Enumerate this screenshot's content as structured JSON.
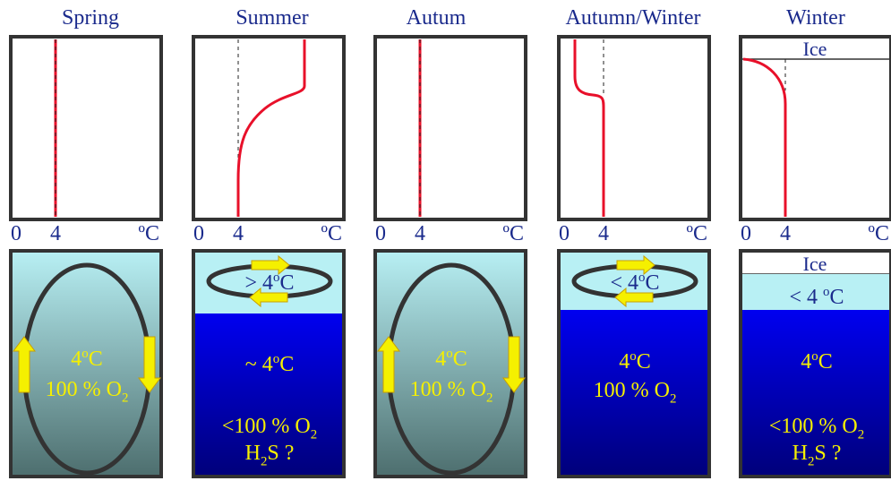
{
  "colors": {
    "frame": "#333333",
    "profile": "#e8102a",
    "text_dark": "#1a2a8c",
    "text_yellow": "#f5f000",
    "arrow_fill": "#f5f000",
    "ellipse": "#333333",
    "surface": "#b8f0f4",
    "deep": "#0000ee",
    "mixed_top": "#b8f0f4",
    "mixed_bottom": "#4d6e6e"
  },
  "axis": {
    "zero": "0",
    "four": "4",
    "unit": "ºC"
  },
  "panels": [
    {
      "title": "Spring",
      "profile_type": "uniform",
      "water": {
        "type": "mixed",
        "layers": [],
        "circulation": "vertical",
        "texts": [
          {
            "id": "temp",
            "pre": "4",
            "sup": "o",
            "post": "C",
            "color": "yellow"
          },
          {
            "id": "oxygen",
            "pre": "100 % O",
            "sub": "2",
            "color": "yellow"
          }
        ]
      }
    },
    {
      "title": "Summer",
      "profile_type": "summer",
      "water": {
        "type": "stratified",
        "layers": [],
        "circulation": "surface",
        "texts": [
          {
            "id": "surface-temp",
            "pre": "> 4",
            "sup": "o",
            "post": "C",
            "color": "dark"
          },
          {
            "id": "deep-temp",
            "pre": "~ 4",
            "sup": "o",
            "post": "C",
            "color": "yellow"
          },
          {
            "id": "oxygen",
            "pre": "<100 % O",
            "sub": "2",
            "color": "yellow"
          },
          {
            "id": "h2s",
            "pre": "H",
            "sub": "2",
            "post": "S ?",
            "color": "yellow"
          }
        ]
      }
    },
    {
      "title": "Autum",
      "profile_type": "uniform",
      "water": {
        "type": "mixed",
        "layers": [],
        "circulation": "vertical",
        "texts": [
          {
            "id": "temp",
            "pre": "4",
            "sup": "o",
            "post": "C",
            "color": "yellow"
          },
          {
            "id": "oxygen",
            "pre": "100 % O",
            "sub": "2",
            "color": "yellow"
          }
        ]
      }
    },
    {
      "title": "Autumn/Winter",
      "profile_type": "autumn_winter",
      "water": {
        "type": "stratified",
        "layers": [],
        "circulation": "surface",
        "texts": [
          {
            "id": "surface-temp",
            "pre": "< 4",
            "sup": "o",
            "post": "C",
            "color": "dark"
          },
          {
            "id": "temp",
            "pre": "4",
            "sup": "o",
            "post": "C",
            "color": "yellow"
          },
          {
            "id": "oxygen",
            "pre": "100 % O",
            "sub": "2",
            "color": "yellow"
          }
        ]
      }
    },
    {
      "title": "Winter",
      "profile_type": "winter",
      "profile_label": "Ice",
      "water": {
        "type": "ice",
        "layers": [
          "Ice"
        ],
        "circulation": "none",
        "texts": [
          {
            "id": "surface-temp",
            "pre": "< 4 ",
            "sup": "o",
            "post": "C",
            "color": "dark"
          },
          {
            "id": "temp",
            "pre": "4",
            "sup": "o",
            "post": "C",
            "color": "yellow"
          },
          {
            "id": "oxygen",
            "pre": "<100 % O",
            "sub": "2",
            "color": "yellow"
          },
          {
            "id": "h2s",
            "pre": "H",
            "sub": "2",
            "post": "S  ?",
            "color": "yellow"
          }
        ]
      }
    }
  ]
}
